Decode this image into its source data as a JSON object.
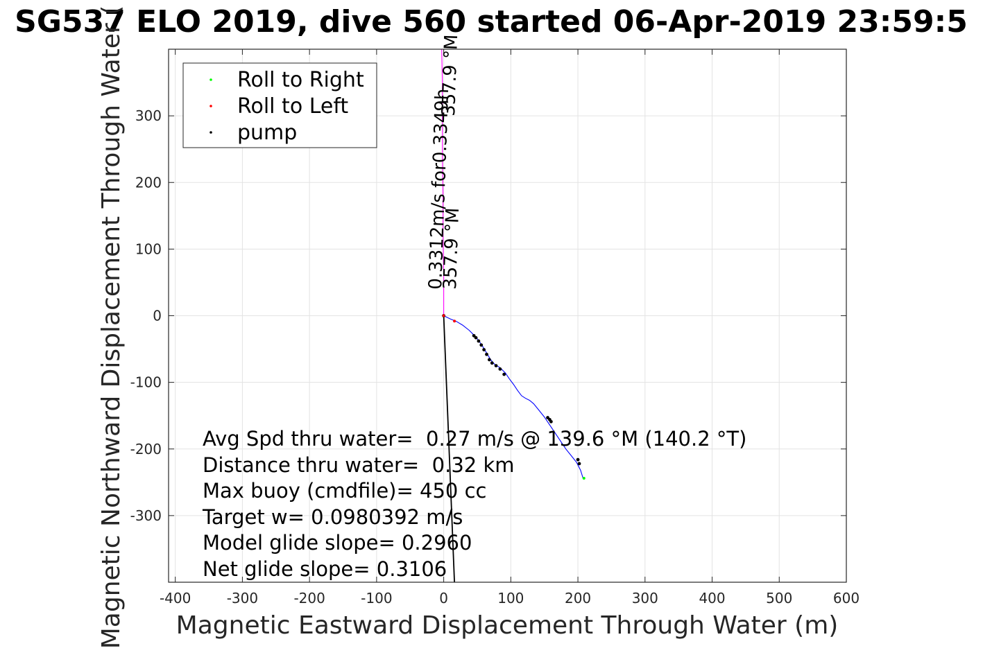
{
  "chart_data": {
    "type": "line",
    "title": "SG537 ELO 2019, dive 560 started 06-Apr-2019 23:59:5",
    "xlabel": "Magnetic Eastward Displacement Through Water (m)",
    "ylabel": "Magnetic Northward Displacement Through Water (",
    "xlim": [
      -410,
      600
    ],
    "ylim": [
      -400,
      400
    ],
    "xticks": [
      -400,
      -300,
      -200,
      -100,
      0,
      100,
      200,
      300,
      400,
      500,
      600
    ],
    "yticks": [
      -300,
      -200,
      -100,
      0,
      100,
      200,
      300
    ],
    "xtick_labels": [
      "-400",
      "-300",
      "-200",
      "-100",
      "0",
      "100",
      "200",
      "300",
      "400",
      "500",
      "600"
    ],
    "ytick_labels": [
      "-300",
      "-200",
      "-100",
      "0",
      "100",
      "200",
      "300"
    ],
    "grid": true,
    "legend": {
      "placement": "top-left",
      "entries": [
        {
          "label": "Roll to Right",
          "color": "#00ff00"
        },
        {
          "label": "Roll to Left",
          "color": "#ff0000"
        },
        {
          "label": "pump",
          "color": "#000000"
        }
      ]
    },
    "series": [
      {
        "role": "track",
        "color": "#0000ff",
        "x": [
          0,
          10,
          18,
          28,
          38,
          46,
          52,
          58,
          64,
          70,
          76,
          84,
          92,
          98,
          104,
          110,
          116,
          122,
          128,
          134,
          142,
          150,
          158,
          166,
          174,
          182,
          190,
          198,
          204,
          208
        ],
        "y": [
          0,
          -5,
          -8,
          -14,
          -22,
          -30,
          -37,
          -46,
          -56,
          -66,
          -73,
          -78,
          -86,
          -95,
          -103,
          -112,
          -120,
          -124,
          -127,
          -132,
          -142,
          -152,
          -164,
          -176,
          -188,
          -200,
          -210,
          -220,
          -232,
          -245
        ]
      },
      {
        "role": "current",
        "color": "#ff00ff",
        "x": [
          0,
          0,
          -1,
          -1,
          -2,
          -2,
          -2,
          -3
        ],
        "y": [
          0,
          60,
          120,
          180,
          240,
          300,
          350,
          400
        ]
      },
      {
        "role": "depth-averaged current",
        "color": "#000000",
        "x": [
          0,
          16
        ],
        "y": [
          0,
          -400
        ]
      }
    ],
    "markers": [
      {
        "label": "pump",
        "color": "#000000",
        "x": [
          0,
          45,
          48,
          52,
          56,
          60,
          64,
          68,
          72,
          78,
          84,
          90,
          155,
          158,
          160,
          200,
          202
        ],
        "y": [
          0,
          -30,
          -33,
          -38,
          -44,
          -51,
          -58,
          -66,
          -71,
          -75,
          -80,
          -88,
          -153,
          -156,
          -159,
          -216,
          -222
        ]
      },
      {
        "label": "Roll to Left",
        "color": "#ff0000",
        "x": [
          0,
          16
        ],
        "y": [
          0,
          -8
        ]
      },
      {
        "label": "Roll to Right",
        "color": "#00ff00",
        "x": [
          209
        ],
        "y": [
          -244
        ]
      }
    ],
    "annotations": {
      "current_label_1": "0.3312m/s for0.3349h",
      "current_label_2": "357.9 °M",
      "current_label_3": "357.9 °M",
      "stats": [
        "Avg Spd thru water=  0.27 m/s @ 139.6 °M (140.2 °T)",
        "Distance thru water=  0.32 km",
        "Max buoy (cmdfile)= 450 cc",
        "Target w= 0.0980392 m/s",
        "Model glide slope= 0.2960",
        "Net glide slope= 0.3106"
      ]
    }
  }
}
